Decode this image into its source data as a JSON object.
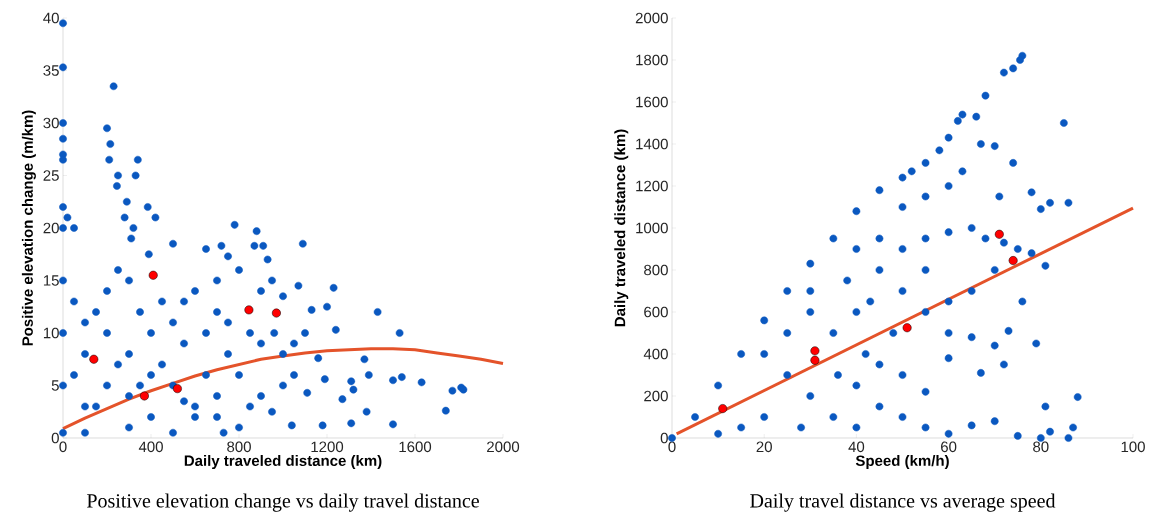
{
  "chart_data": [
    {
      "type": "scatter",
      "title": "Positive elevation change vs daily travel distance",
      "xlabel": "Daily traveled distance (km)",
      "ylabel": "Positive elevation change (m/km)",
      "xlim": [
        0,
        2000
      ],
      "ylim": [
        0,
        40
      ],
      "xticks": [
        0,
        400,
        800,
        1200,
        1600,
        2000
      ],
      "yticks": [
        0,
        5,
        10,
        15,
        20,
        25,
        30,
        35,
        40
      ],
      "series": [
        {
          "marker": "circle",
          "color": "#0a58c0",
          "x": [
            0,
            0,
            0,
            0,
            0,
            0,
            0,
            0,
            230,
            200,
            215,
            210,
            340,
            330,
            250,
            245,
            290,
            280,
            385,
            420,
            20,
            50,
            320,
            310,
            390,
            500,
            780,
            880,
            870,
            910,
            1090,
            650,
            720,
            750,
            930,
            1230,
            1430,
            1530,
            1240,
            1370,
            1390,
            1540,
            1500,
            1630,
            1310,
            1320,
            1770,
            1810,
            1820,
            1740,
            1380,
            1500,
            1310,
            1180,
            1040,
            730,
            1270,
            1110,
            1190,
            1160,
            1050,
            960,
            1130,
            1200,
            1000,
            1070,
            700,
            600,
            800,
            900,
            950,
            550,
            650,
            700,
            750,
            850,
            900,
            750,
            800,
            900,
            850,
            950,
            1000,
            1050,
            700,
            600,
            650,
            550,
            500,
            450,
            400,
            350,
            300,
            250,
            200,
            150,
            100,
            50,
            0,
            0,
            0,
            0,
            100,
            200,
            300,
            400,
            500,
            600,
            500,
            300,
            100,
            200,
            100,
            300,
            400,
            50,
            150,
            250,
            450,
            350,
            550,
            700,
            800,
            1000,
            1100
          ],
          "values": [
            39.5,
            35.3,
            30,
            28.5,
            27,
            26.5,
            22,
            20,
            33.5,
            29.5,
            28,
            26.5,
            26.5,
            25,
            25,
            24,
            22.5,
            21,
            22,
            21,
            21,
            20,
            20,
            19,
            17.5,
            18.5,
            20.3,
            19.7,
            18.3,
            18.3,
            18.5,
            18,
            18.3,
            17.3,
            17,
            14.3,
            12,
            10,
            10.3,
            7.5,
            6,
            5.8,
            5.5,
            5.3,
            5.4,
            4.6,
            4.5,
            4.8,
            4.6,
            2.6,
            2.5,
            1.3,
            1.4,
            1.2,
            1.2,
            0.5,
            3.7,
            4.3,
            5.6,
            7.6,
            9,
            10,
            12.2,
            12.5,
            13.5,
            14.5,
            15,
            14,
            16,
            14,
            15,
            13,
            10,
            12,
            11,
            10,
            9,
            8,
            6,
            4,
            3,
            2.5,
            5,
            6,
            4,
            3,
            6,
            9,
            11,
            13,
            10,
            12,
            15,
            16,
            14,
            12,
            11,
            13,
            15,
            10,
            5,
            0.5,
            8,
            10,
            8,
            6,
            5,
            2,
            0.5,
            1,
            0.5,
            5,
            3,
            4,
            2,
            6,
            3,
            7,
            7,
            5,
            3.5,
            2,
            1,
            8,
            10
          ]
        },
        {
          "marker": "circle",
          "color": "#ff0000",
          "x": [
            140,
            370,
            410,
            520,
            845,
            970
          ],
          "values": [
            7.5,
            4.0,
            15.5,
            4.7,
            12.2,
            11.9
          ]
        },
        {
          "type": "line",
          "marker": "none",
          "color": "#e4532a",
          "x": [
            0,
            100,
            200,
            300,
            400,
            500,
            600,
            700,
            800,
            900,
            1000,
            1100,
            1200,
            1300,
            1400,
            1500,
            1600,
            1700,
            1800,
            1900,
            2000
          ],
          "values": [
            0.9,
            1.9,
            2.8,
            3.7,
            4.5,
            5.2,
            5.9,
            6.5,
            7.0,
            7.5,
            7.8,
            8.1,
            8.3,
            8.4,
            8.5,
            8.5,
            8.4,
            8.1,
            7.8,
            7.5,
            7.1
          ]
        }
      ]
    },
    {
      "type": "scatter",
      "title": "Daily travel distance vs average speed",
      "xlabel": "Speed (km/h)",
      "ylabel": "Daily traveled distance (km)",
      "xlim": [
        0,
        100
      ],
      "ylim": [
        0,
        2000
      ],
      "xticks": [
        0,
        20,
        40,
        60,
        80,
        100
      ],
      "yticks": [
        0,
        200,
        400,
        600,
        800,
        1000,
        1200,
        1400,
        1600,
        1800,
        2000
      ],
      "series": [
        {
          "marker": "circle",
          "color": "#0a58c0",
          "x": [
            0,
            5,
            10,
            15,
            20,
            25,
            30,
            35,
            40,
            45,
            50,
            52,
            55,
            58,
            60,
            62,
            63,
            66,
            68,
            72,
            74,
            76,
            75.5,
            85,
            67,
            70,
            74,
            63,
            71,
            78,
            82,
            86,
            80,
            60,
            55,
            50,
            45,
            40,
            50,
            55,
            60,
            65,
            68,
            72,
            75,
            78,
            81,
            70,
            65,
            60,
            55,
            60,
            65,
            70,
            73,
            79,
            72,
            67,
            60,
            55,
            50,
            45,
            40,
            45,
            50,
            55,
            60,
            65,
            70,
            75,
            80,
            82,
            86,
            87,
            88,
            81,
            76,
            30,
            35,
            25,
            20,
            30,
            35,
            40,
            10,
            40,
            45,
            50,
            55,
            48,
            42,
            36,
            28,
            15,
            20,
            25,
            30,
            38,
            43
          ],
          "values": [
            0,
            100,
            250,
            400,
            560,
            700,
            830,
            950,
            1080,
            1180,
            1240,
            1270,
            1310,
            1370,
            1430,
            1510,
            1540,
            1530,
            1630,
            1740,
            1760,
            1820,
            1800,
            1500,
            1400,
            1390,
            1310,
            1270,
            1150,
            1170,
            1120,
            1120,
            1090,
            1200,
            1150,
            1100,
            950,
            900,
            900,
            950,
            980,
            1000,
            950,
            930,
            900,
            880,
            820,
            800,
            700,
            650,
            600,
            500,
            480,
            440,
            510,
            450,
            350,
            310,
            380,
            220,
            300,
            350,
            250,
            150,
            100,
            50,
            20,
            60,
            80,
            10,
            0,
            30,
            0,
            50,
            195,
            150,
            650,
            700,
            500,
            300,
            100,
            200,
            100,
            50,
            20,
            600,
            800,
            700,
            800,
            500,
            400,
            300,
            50,
            50,
            400,
            500,
            600,
            750,
            650
          ]
        },
        {
          "marker": "circle",
          "color": "#ff0000",
          "x": [
            11,
            31,
            31,
            51,
            71,
            74
          ],
          "values": [
            140,
            415,
            370,
            525,
            970,
            845
          ]
        },
        {
          "type": "line",
          "marker": "none",
          "color": "#e4532a",
          "x": [
            1,
            100
          ],
          "values": [
            20,
            1095
          ]
        }
      ]
    }
  ]
}
